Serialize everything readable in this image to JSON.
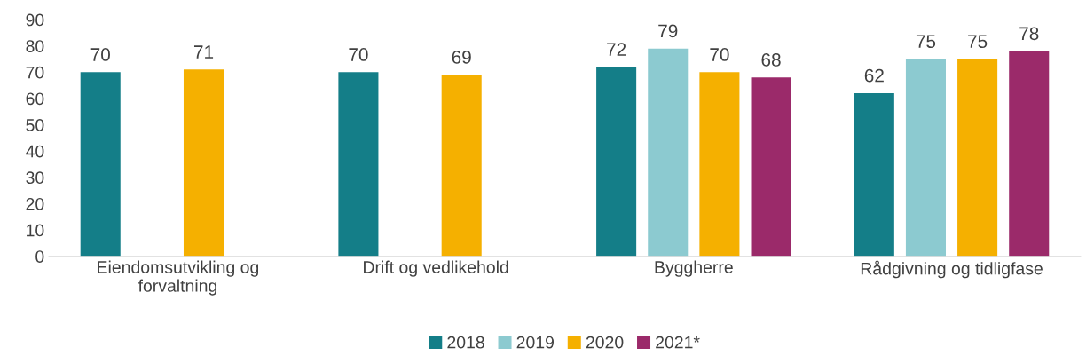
{
  "chart_data": {
    "type": "bar",
    "categories": [
      "Eiendomsutvikling og\nforvaltning",
      "Drift og vedlikehold",
      "Byggherre",
      "Rådgivning og tidligfase"
    ],
    "series": [
      {
        "name": "2018",
        "color": "#147e88",
        "values": [
          70,
          70,
          72,
          62
        ]
      },
      {
        "name": "2019",
        "color": "#8ccad0",
        "values": [
          null,
          null,
          79,
          75
        ]
      },
      {
        "name": "2020",
        "color": "#f5b000",
        "values": [
          71,
          69,
          70,
          75
        ]
      },
      {
        "name": "2021*",
        "color": "#9b2a6a",
        "values": [
          null,
          null,
          68,
          78
        ]
      }
    ],
    "ylim": [
      0,
      90
    ],
    "yticks": [
      0,
      10,
      20,
      30,
      40,
      50,
      60,
      70,
      80,
      90
    ],
    "data_labels": true,
    "grid": false,
    "legend": "bottom"
  }
}
